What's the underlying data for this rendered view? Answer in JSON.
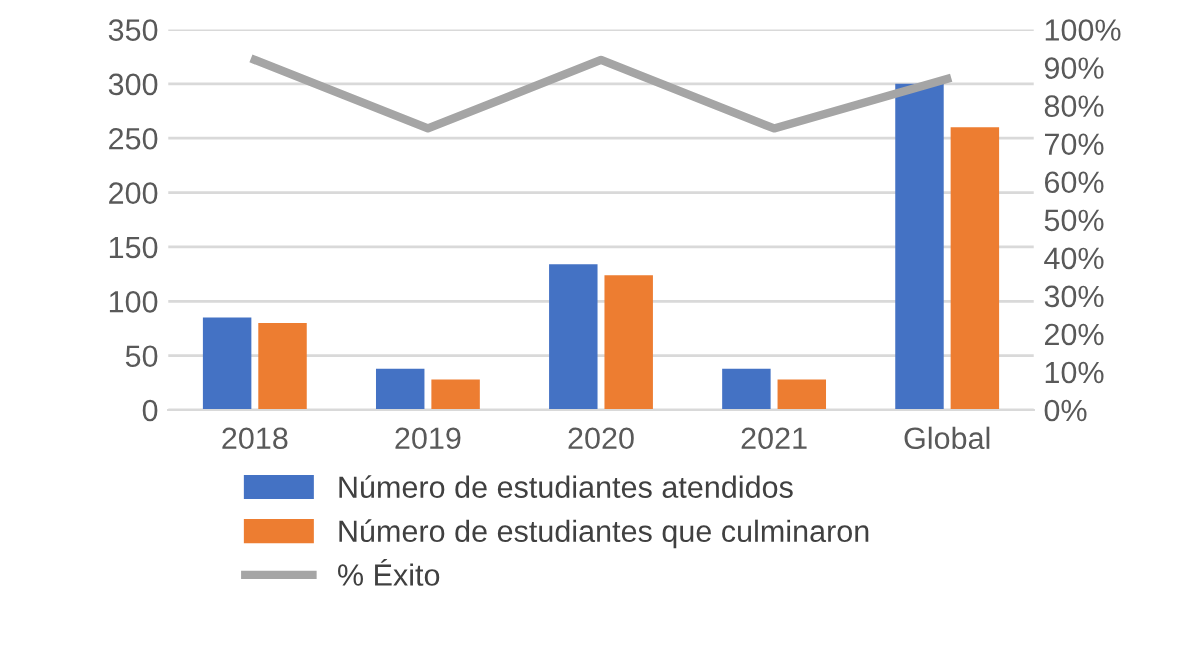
{
  "chart_data": {
    "type": "bar",
    "categories": [
      "2018",
      "2019",
      "2020",
      "2021",
      "Global"
    ],
    "series": [
      {
        "name": "Número de estudiantes atendidos",
        "color": "#4472c4",
        "values": [
          85,
          38,
          134,
          38,
          300
        ]
      },
      {
        "name": "Número de estudiantes que culminaron",
        "color": "#ed7d31",
        "values": [
          80,
          28,
          124,
          28,
          260
        ]
      },
      {
        "name": "% Éxito",
        "type": "line",
        "axis": "y2",
        "color": "#a5a5a5",
        "values": [
          92,
          74,
          92,
          74,
          87
        ]
      }
    ],
    "ylim": [
      0,
      350
    ],
    "yticks": [
      0,
      50,
      100,
      150,
      200,
      250,
      300,
      350
    ],
    "y2lim": [
      0,
      100
    ],
    "y2ticks": [
      {
        "value": 0,
        "label": "0%"
      },
      {
        "value": 10,
        "label": "10%"
      },
      {
        "value": 20,
        "label": "20%"
      },
      {
        "value": 30,
        "label": "30%"
      },
      {
        "value": 40,
        "label": "40%"
      },
      {
        "value": 50,
        "label": "50%"
      },
      {
        "value": 60,
        "label": "60%"
      },
      {
        "value": 70,
        "label": "70%"
      },
      {
        "value": 80,
        "label": "80%"
      },
      {
        "value": 90,
        "label": "90%"
      },
      {
        "value": 100,
        "label": "100%"
      }
    ],
    "grid": "y",
    "legend": "bottom",
    "marker": "none"
  }
}
